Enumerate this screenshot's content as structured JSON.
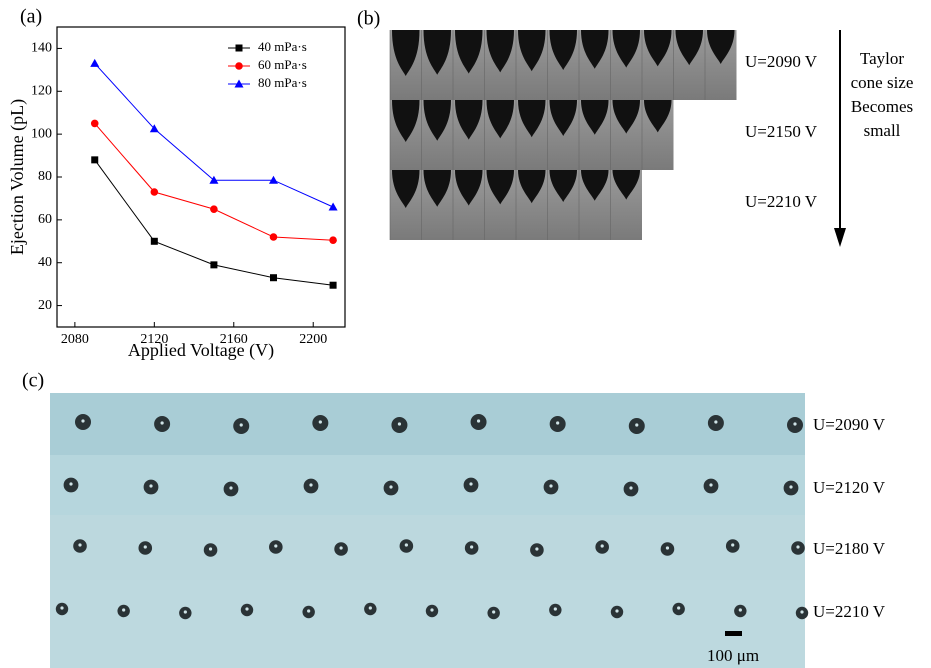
{
  "panel_labels": [
    "(a)",
    "(b)",
    "(c)"
  ],
  "chart_data": {
    "type": "line",
    "x_label": "Applied Voltage (V)",
    "y_label": "Ejection Volume (pL)",
    "x": [
      2090,
      2120,
      2150,
      2180,
      2210
    ],
    "series": [
      {
        "name": "40 mPa·s",
        "color": "#000000",
        "marker": "square",
        "values": [
          88,
          50,
          39,
          33,
          29.5
        ]
      },
      {
        "name": "60 mPa·s",
        "color": "#ff0000",
        "marker": "circle",
        "values": [
          105,
          73,
          65,
          52,
          50.5
        ]
      },
      {
        "name": "80 mPa·s",
        "color": "#0000ff",
        "marker": "triangle",
        "values": [
          133,
          102.5,
          78.5,
          78.5,
          66
        ]
      }
    ],
    "xlim": [
      2071,
      2216
    ],
    "xticks": [
      2080,
      2120,
      2160,
      2200
    ],
    "ylim": [
      10,
      150
    ],
    "yticks": [
      20,
      40,
      60,
      80,
      100,
      120,
      140
    ],
    "legend": "upper right"
  },
  "cone_panel": {
    "voltage_labels": [
      "U=2090 V",
      "U=2150 V",
      "U=2210 V"
    ],
    "annotation": [
      "Taylor",
      "cone size",
      "Becomes",
      "small"
    ]
  },
  "droplet_panel": {
    "voltage_labels": [
      "U=2090 V",
      "U=2120 V",
      "U=2180 V",
      "U=2210 V"
    ],
    "scale_bar": "100 μm"
  }
}
